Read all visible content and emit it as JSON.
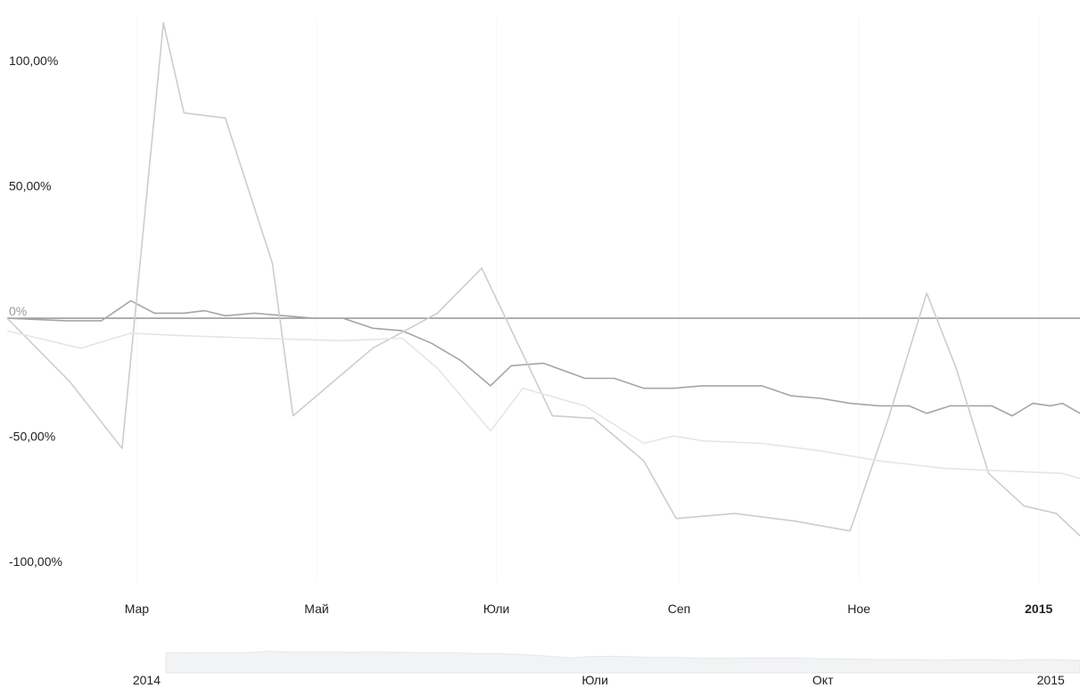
{
  "chart_data": {
    "type": "line",
    "y_ticks": [
      "100,00%",
      "50,00%",
      "0%",
      "-50,00%",
      "-100,00%"
    ],
    "y_tick_values": [
      100,
      50,
      0,
      -50,
      -100
    ],
    "x_ticks": [
      "Мар",
      "Май",
      "Юли",
      "Сеп",
      "Ное",
      "2015"
    ],
    "x_tick_dates": [
      "2014-03-01",
      "2014-05-01",
      "2014-07-01",
      "2014-09-01",
      "2014-11-01",
      "2015-01-01"
    ],
    "xlim": [
      "2014-01-16",
      "2015-01-15"
    ],
    "ylim": [
      -105,
      120
    ],
    "grid": true,
    "zero_line": true,
    "series": [
      {
        "color": "#9fa7ad",
        "points": [
          [
            "2014-01-16",
            0
          ],
          [
            "2014-02-05",
            -1
          ],
          [
            "2014-02-17",
            -1
          ],
          [
            "2014-02-27",
            7
          ],
          [
            "2014-03-07",
            2
          ],
          [
            "2014-03-17",
            2
          ],
          [
            "2014-03-24",
            3
          ],
          [
            "2014-03-31",
            1
          ],
          [
            "2014-04-10",
            2
          ],
          [
            "2014-04-20",
            1
          ],
          [
            "2014-04-30",
            0
          ],
          [
            "2014-05-10",
            0
          ],
          [
            "2014-05-20",
            -4
          ],
          [
            "2014-05-30",
            -5
          ],
          [
            "2014-06-09",
            -10
          ],
          [
            "2014-06-19",
            -17
          ],
          [
            "2014-06-29",
            -27
          ],
          [
            "2014-07-06",
            -19
          ],
          [
            "2014-07-17",
            -18
          ],
          [
            "2014-07-31",
            -24
          ],
          [
            "2014-08-10",
            -24
          ],
          [
            "2014-08-20",
            -28
          ],
          [
            "2014-08-30",
            -28
          ],
          [
            "2014-09-09",
            -27
          ],
          [
            "2014-09-19",
            -27
          ],
          [
            "2014-09-29",
            -27
          ],
          [
            "2014-10-09",
            -31
          ],
          [
            "2014-10-19",
            -32
          ],
          [
            "2014-10-29",
            -34
          ],
          [
            "2014-11-08",
            -35
          ],
          [
            "2014-11-18",
            -35
          ],
          [
            "2014-11-24",
            -38
          ],
          [
            "2014-12-02",
            -35
          ],
          [
            "2014-12-16",
            -35
          ],
          [
            "2014-12-23",
            -39
          ],
          [
            "2014-12-30",
            -34
          ],
          [
            "2015-01-05",
            -35
          ],
          [
            "2015-01-09",
            -34
          ],
          [
            "2015-01-15",
            -38
          ]
        ]
      },
      {
        "color": "#c9ced3",
        "points": [
          [
            "2014-01-16",
            0
          ],
          [
            "2014-02-06",
            -25
          ],
          [
            "2014-02-24",
            -52
          ],
          [
            "2014-03-10",
            118
          ],
          [
            "2014-03-17",
            82
          ],
          [
            "2014-03-31",
            80
          ],
          [
            "2014-04-16",
            22
          ],
          [
            "2014-04-23",
            -39
          ],
          [
            "2014-05-20",
            -12
          ],
          [
            "2014-06-11",
            2
          ],
          [
            "2014-06-26",
            20
          ],
          [
            "2014-07-20",
            -39
          ],
          [
            "2014-08-03",
            -40
          ],
          [
            "2014-08-20",
            -57
          ],
          [
            "2014-08-31",
            -80
          ],
          [
            "2014-09-20",
            -78
          ],
          [
            "2014-10-10",
            -81
          ],
          [
            "2014-10-29",
            -85
          ],
          [
            "2014-11-11",
            -40
          ],
          [
            "2014-11-24",
            10
          ],
          [
            "2014-12-04",
            -20
          ],
          [
            "2014-12-15",
            -62
          ],
          [
            "2014-12-27",
            -75
          ],
          [
            "2015-01-07",
            -78
          ],
          [
            "2015-01-15",
            -87
          ]
        ]
      },
      {
        "color": "#e3e6e9",
        "points": [
          [
            "2014-01-16",
            -5
          ],
          [
            "2014-02-10",
            -12
          ],
          [
            "2014-02-27",
            -6
          ],
          [
            "2014-03-17",
            -7
          ],
          [
            "2014-04-10",
            -8
          ],
          [
            "2014-05-10",
            -9
          ],
          [
            "2014-05-30",
            -8
          ],
          [
            "2014-06-11",
            -20
          ],
          [
            "2014-06-29",
            -45
          ],
          [
            "2014-07-10",
            -28
          ],
          [
            "2014-07-31",
            -35
          ],
          [
            "2014-08-20",
            -50
          ],
          [
            "2014-08-30",
            -47
          ],
          [
            "2014-09-09",
            -49
          ],
          [
            "2014-09-29",
            -50
          ],
          [
            "2014-10-19",
            -53
          ],
          [
            "2014-11-08",
            -57
          ],
          [
            "2014-11-30",
            -60
          ],
          [
            "2014-12-20",
            -61
          ],
          [
            "2015-01-09",
            -62
          ],
          [
            "2015-01-15",
            -64
          ]
        ]
      }
    ],
    "navigator": {
      "labels": [
        "2014",
        "Юли",
        "Окт",
        "2015"
      ],
      "label_dates": [
        "2014-01-01",
        "2014-07-01",
        "2014-10-01",
        "2015-01-01"
      ],
      "xlim": [
        "2013-11-10",
        "2015-01-20"
      ]
    }
  }
}
